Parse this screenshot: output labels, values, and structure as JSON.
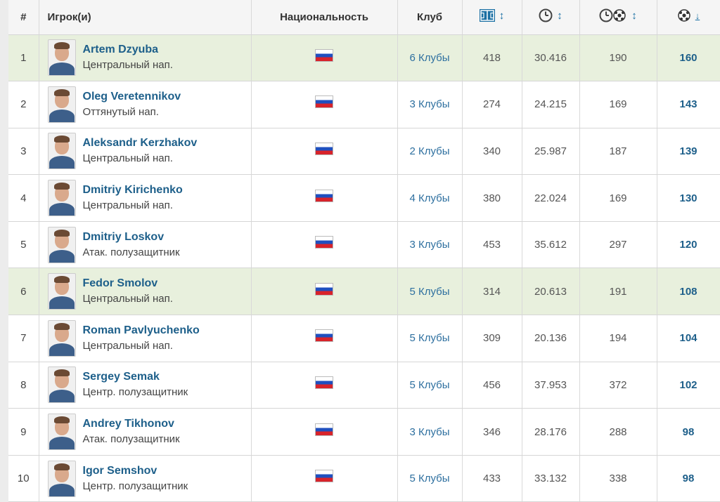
{
  "table": {
    "headers": {
      "rank": "#",
      "player": "Игрок(и)",
      "nationality": "Национальность",
      "club": "Клуб"
    },
    "sort_icons": {
      "apps": "pitch-icon",
      "minutes": "clock-icon",
      "minutes_per_goal": "clock-ball-icon",
      "goals": "ball-icon"
    },
    "rows": [
      {
        "rank": "1",
        "name": "Artem Dzyuba",
        "position": "Центральный нап.",
        "nationality": "Russia",
        "clubs": "6 Клубы",
        "apps": "418",
        "minutes": "30.416",
        "minutes_per_goal": "190",
        "goals": "160",
        "highlight": true
      },
      {
        "rank": "2",
        "name": "Oleg Veretennikov",
        "position": "Оттянутый нап.",
        "nationality": "Russia",
        "clubs": "3 Клубы",
        "apps": "274",
        "minutes": "24.215",
        "minutes_per_goal": "169",
        "goals": "143",
        "highlight": false
      },
      {
        "rank": "3",
        "name": "Aleksandr Kerzhakov",
        "position": "Центральный нап.",
        "nationality": "Russia",
        "clubs": "2 Клубы",
        "apps": "340",
        "minutes": "25.987",
        "minutes_per_goal": "187",
        "goals": "139",
        "highlight": false
      },
      {
        "rank": "4",
        "name": "Dmitriy Kirichenko",
        "position": "Центральный нап.",
        "nationality": "Russia",
        "clubs": "4 Клубы",
        "apps": "380",
        "minutes": "22.024",
        "minutes_per_goal": "169",
        "goals": "130",
        "highlight": false
      },
      {
        "rank": "5",
        "name": "Dmitriy Loskov",
        "position": "Атак. полузащитник",
        "nationality": "Russia",
        "clubs": "3 Клубы",
        "apps": "453",
        "minutes": "35.612",
        "minutes_per_goal": "297",
        "goals": "120",
        "highlight": false
      },
      {
        "rank": "6",
        "name": "Fedor Smolov",
        "position": "Центральный нап.",
        "nationality": "Russia",
        "clubs": "5 Клубы",
        "apps": "314",
        "minutes": "20.613",
        "minutes_per_goal": "191",
        "goals": "108",
        "highlight": true
      },
      {
        "rank": "7",
        "name": "Roman Pavlyuchenko",
        "position": "Центральный нап.",
        "nationality": "Russia",
        "clubs": "5 Клубы",
        "apps": "309",
        "minutes": "20.136",
        "minutes_per_goal": "194",
        "goals": "104",
        "highlight": false
      },
      {
        "rank": "8",
        "name": "Sergey Semak",
        "position": "Центр. полузащитник",
        "nationality": "Russia",
        "clubs": "5 Клубы",
        "apps": "456",
        "minutes": "37.953",
        "minutes_per_goal": "372",
        "goals": "102",
        "highlight": false
      },
      {
        "rank": "9",
        "name": "Andrey Tikhonov",
        "position": "Атак. полузащитник",
        "nationality": "Russia",
        "clubs": "3 Клубы",
        "apps": "346",
        "minutes": "28.176",
        "minutes_per_goal": "288",
        "goals": "98",
        "highlight": false
      },
      {
        "rank": "10",
        "name": "Igor Semshov",
        "position": "Центр. полузащитник",
        "nationality": "Russia",
        "clubs": "5 Клубы",
        "apps": "433",
        "minutes": "33.132",
        "minutes_per_goal": "338",
        "goals": "98",
        "highlight": false
      }
    ]
  },
  "colors": {
    "highlight_row": "#e8f0dd",
    "link": "#1d5f8a",
    "header_bg": "#f5f5f5"
  }
}
